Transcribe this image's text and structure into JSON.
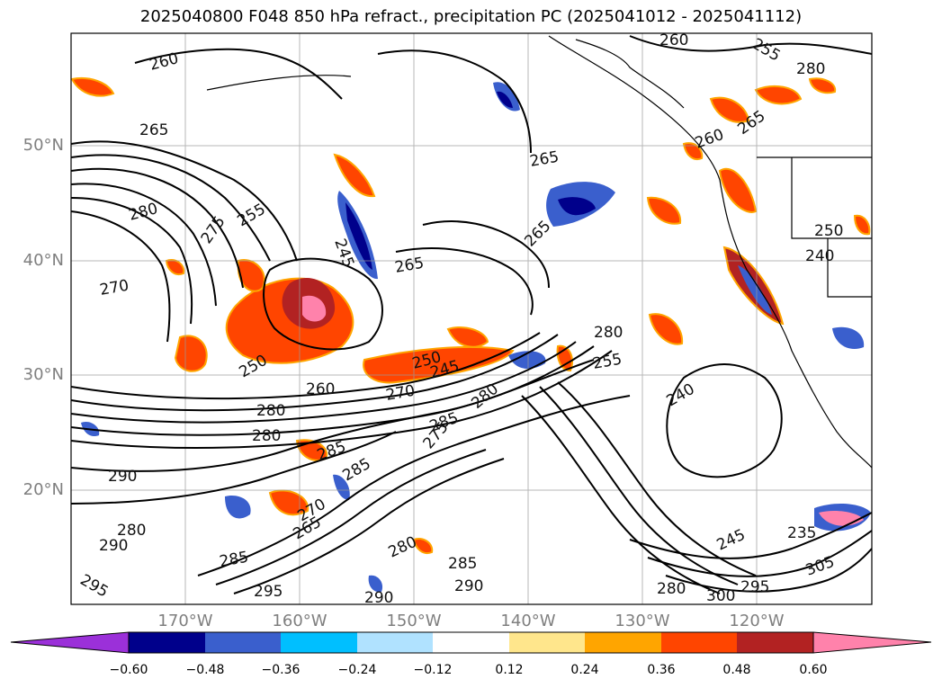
{
  "title": "2025040800 F048 850 hPa refract., precipitation PC (2025041012 - 2025041112)",
  "lat_labels": [
    "50°N",
    "40°N",
    "30°N",
    "20°N"
  ],
  "lon_labels": [
    "170°W",
    "160°W",
    "150°W",
    "140°W",
    "130°W",
    "120°W"
  ],
  "colorbar": {
    "ticks": [
      "−0.60",
      "−0.48",
      "−0.36",
      "−0.24",
      "−0.12",
      "0.12",
      "0.24",
      "0.36",
      "0.48",
      "0.60"
    ],
    "colors": [
      "#9b30d9",
      "#00008b",
      "#3a5fcd",
      "#00bfff",
      "#b0e2ff",
      "#ffffff",
      "#ffe68c",
      "#ffa500",
      "#ff4500",
      "#b22222",
      "#ff82ab"
    ]
  },
  "contour_labels": [
    "260",
    "265",
    "265",
    "270",
    "275",
    "280",
    "255",
    "245",
    "265",
    "260",
    "265",
    "250",
    "280",
    "250",
    "245",
    "270",
    "280",
    "285",
    "280",
    "275",
    "285",
    "290",
    "285",
    "280",
    "290",
    "295",
    "280",
    "285",
    "270",
    "265",
    "290",
    "290",
    "285",
    "280",
    "295",
    "240",
    "255",
    "280",
    "260",
    "265",
    "260",
    "245",
    "300",
    "295",
    "305",
    "250",
    "255",
    "240",
    "235"
  ]
}
